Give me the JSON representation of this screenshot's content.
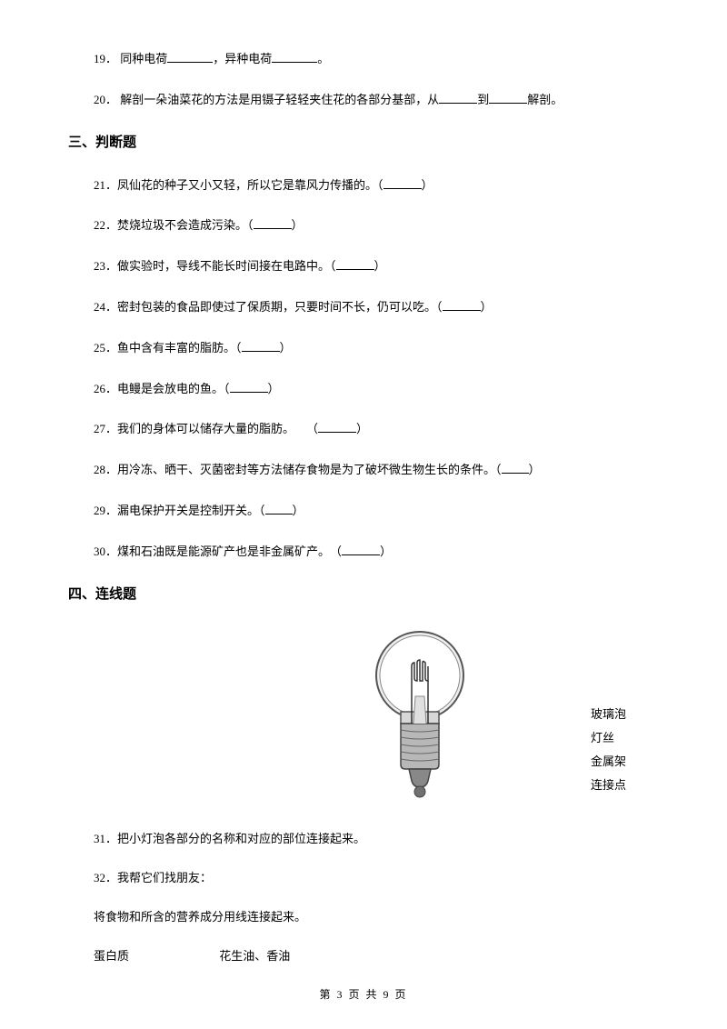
{
  "questions": {
    "q19": {
      "num": "19．",
      "text_a": "同种电荷",
      "text_b": "，异种电荷",
      "text_c": "。"
    },
    "q20": {
      "num": "20．",
      "text_a": "解剖一朵油菜花的方法是用镊子轻轻夹住花的各部分基部，从",
      "text_b": "到",
      "text_c": "解剖。"
    }
  },
  "section3": {
    "header": "三、判断题",
    "items": [
      {
        "num": "21．",
        "text": "凤仙花的种子又小又轻，所以它是靠风力传播的。（",
        "end": "）"
      },
      {
        "num": "22．",
        "text": "焚烧垃圾不会造成污染。（",
        "end": "）"
      },
      {
        "num": "23．",
        "text": "做实验时，导线不能长时间接在电路中。（",
        "end": "）"
      },
      {
        "num": "24．",
        "text": "密封包装的食品即使过了保质期，只要时间不长，仍可以吃。（",
        "end": "）"
      },
      {
        "num": "25．",
        "text": "鱼中含有丰富的脂肪。（",
        "end": "）"
      },
      {
        "num": "26．",
        "text": "电鳗是会放电的鱼。（",
        "end": "）"
      },
      {
        "num": "27．",
        "text": "我们的身体可以储存大量的脂肪。　　（",
        "end": "）"
      },
      {
        "num": "28．",
        "text": "用冷冻、晒干、灭菌密封等方法储存食物是为了破坏微生物生长的条件。（",
        "end": "）",
        "tiny": true
      },
      {
        "num": "29．",
        "text": "漏电保护开关是控制开关。（",
        "end": "）",
        "tiny": true
      },
      {
        "num": "30．",
        "text": "煤和石油既是能源矿产也是非金属矿产。　（",
        "end": "）"
      }
    ]
  },
  "section4": {
    "header": "四、连线题",
    "q31": {
      "num": "31．",
      "text": "把小灯泡各部分的名称和对应的部位连接起来。"
    },
    "bulb_labels": {
      "l1": "玻璃泡",
      "l2": "灯丝",
      "l3": "金属架",
      "l4": "连接点"
    },
    "q32": {
      "num": "32．",
      "text": "我帮它们找朋友：",
      "subtext": "将食物和所含的营养成分用线连接起来。",
      "match_left": "蛋白质",
      "match_right": "花生油、香油"
    }
  },
  "footer": "第 3 页 共 9 页",
  "bulb_svg": {
    "glass_fill": "#e8e8e8",
    "glass_stroke": "#555555",
    "base_fill": "#b0b0b0",
    "base_stroke": "#444444",
    "filament_stroke": "#333333"
  }
}
